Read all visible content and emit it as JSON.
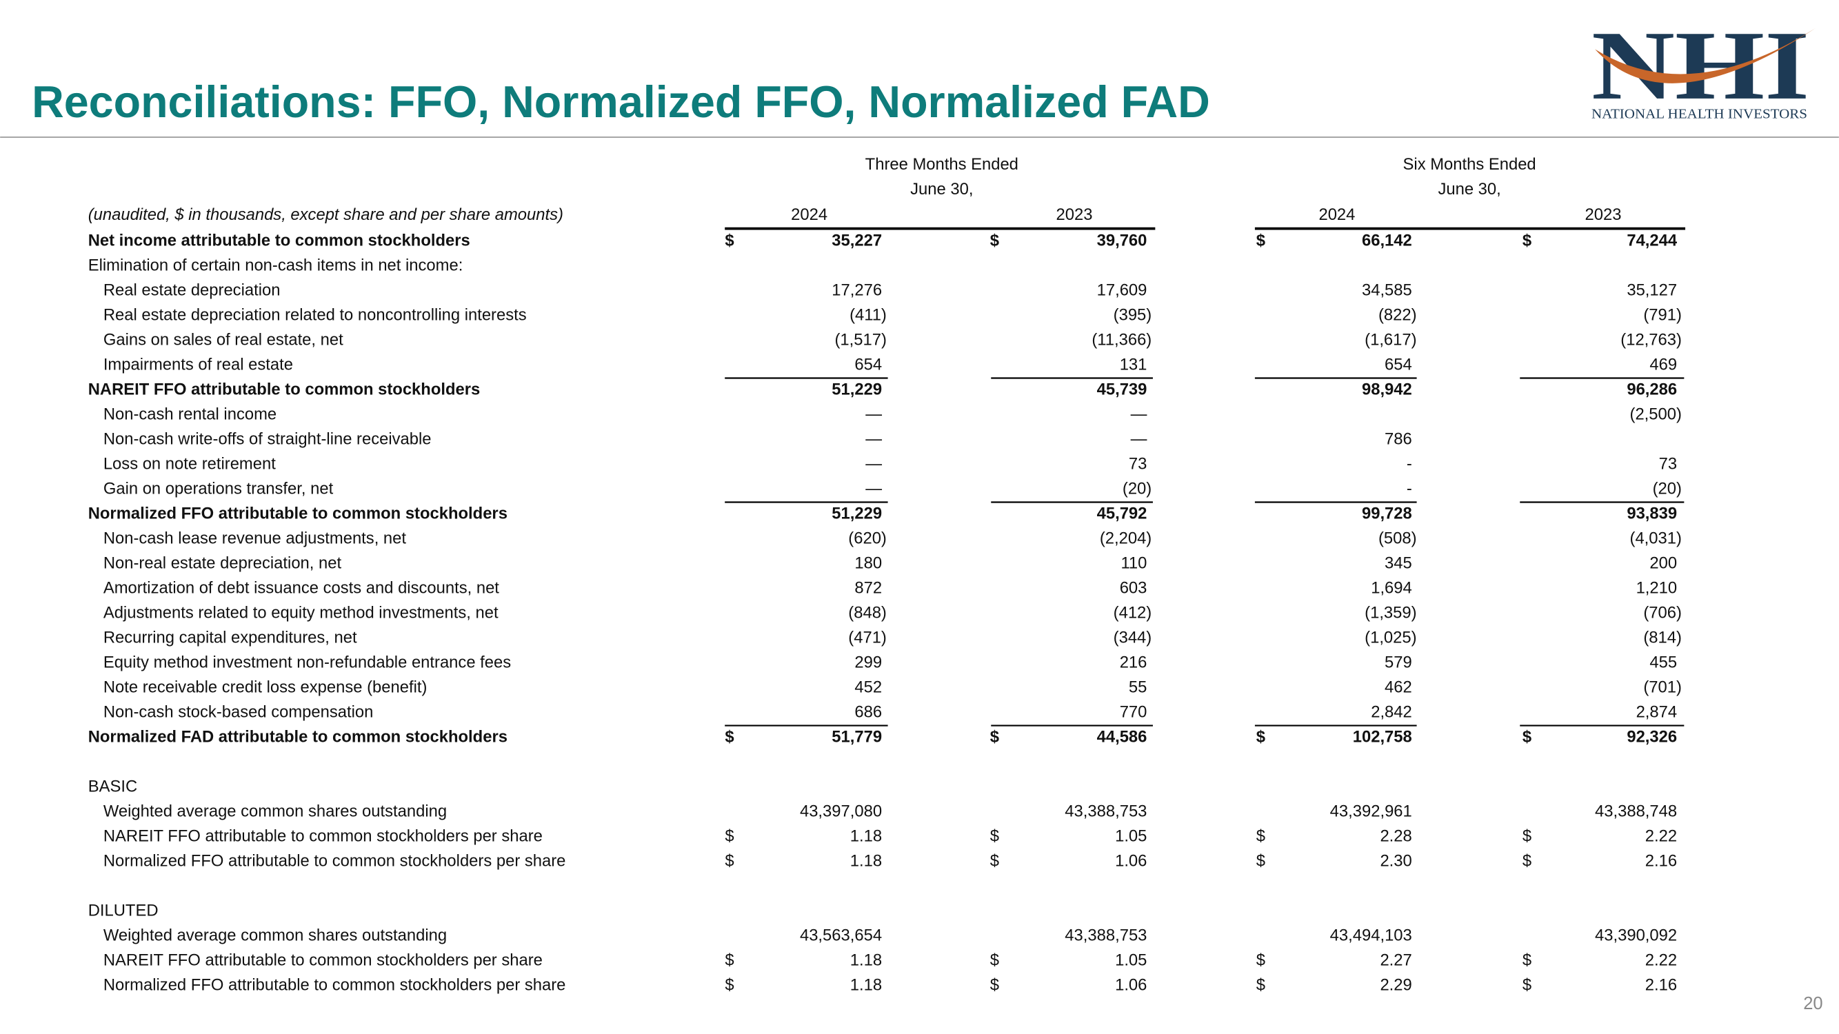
{
  "header": {
    "title": "Reconciliations:  FFO, Normalized FFO, Normalized FAD",
    "logo": {
      "mark": "NHI",
      "name": "NATIONAL HEALTH INVESTORS"
    }
  },
  "table": {
    "groups": [
      {
        "label": "Three Months Ended",
        "sublabel": "June 30,"
      },
      {
        "label": "Six Months Ended",
        "sublabel": "June 30,"
      }
    ],
    "note": "(unaudited, $ in thousands, except share and per share amounts)",
    "years": [
      "2024",
      "2023",
      "2024",
      "2023"
    ],
    "rows": [
      {
        "label": "Net income attributable to common stockholders",
        "bold": true,
        "symbol": "$",
        "values": [
          "35,227",
          "39,760",
          "66,142",
          "74,244"
        ]
      },
      {
        "label": "Elimination of certain non-cash items in net income:"
      },
      {
        "label": "Real estate depreciation",
        "indent": true,
        "values": [
          "17,276",
          "17,609",
          "34,585",
          "35,127"
        ]
      },
      {
        "label": "Real estate depreciation related to noncontrolling interests",
        "indent": true,
        "values": [
          "(411)",
          "(395)",
          "(822)",
          "(791)"
        ]
      },
      {
        "label": "Gains on sales of real estate, net",
        "indent": true,
        "values": [
          "(1,517)",
          "(11,366)",
          "(1,617)",
          "(12,763)"
        ]
      },
      {
        "label": "Impairments of real estate",
        "indent": true,
        "values": [
          "654",
          "131",
          "654",
          "469"
        ]
      },
      {
        "label": "NAREIT FFO attributable to common stockholders",
        "bold": true,
        "rule_above": true,
        "values": [
          "51,229",
          "45,739",
          "98,942",
          "96,286"
        ]
      },
      {
        "label": "Non-cash rental income",
        "indent": true,
        "values": [
          "—",
          "—",
          null,
          "(2,500)"
        ]
      },
      {
        "label": "Non-cash write-offs of straight-line receivable",
        "indent": true,
        "values": [
          "—",
          "—",
          "786",
          null
        ]
      },
      {
        "label": "Loss on note retirement",
        "indent": true,
        "values": [
          "—",
          "73",
          "-",
          "73"
        ]
      },
      {
        "label": "Gain on operations transfer, net",
        "indent": true,
        "values": [
          "—",
          "(20)",
          "-",
          "(20)"
        ]
      },
      {
        "label": "Normalized FFO attributable to common stockholders",
        "bold": true,
        "rule_above": true,
        "values": [
          "51,229",
          "45,792",
          "99,728",
          "93,839"
        ]
      },
      {
        "label": "Non-cash lease revenue adjustments, net",
        "indent": true,
        "values": [
          "(620)",
          "(2,204)",
          "(508)",
          "(4,031)"
        ]
      },
      {
        "label": "Non-real estate depreciation, net",
        "indent": true,
        "values": [
          "180",
          "110",
          "345",
          "200"
        ]
      },
      {
        "label": "Amortization of debt issuance costs and discounts, net",
        "indent": true,
        "values": [
          "872",
          "603",
          "1,694",
          "1,210"
        ]
      },
      {
        "label": "Adjustments related to equity method investments, net",
        "indent": true,
        "values": [
          "(848)",
          "(412)",
          "(1,359)",
          "(706)"
        ]
      },
      {
        "label": "Recurring capital expenditures, net",
        "indent": true,
        "values": [
          "(471)",
          "(344)",
          "(1,025)",
          "(814)"
        ]
      },
      {
        "label": "Equity method investment non-refundable entrance fees",
        "indent": true,
        "values": [
          "299",
          "216",
          "579",
          "455"
        ]
      },
      {
        "label": "Note receivable credit loss expense (benefit)",
        "indent": true,
        "values": [
          "452",
          "55",
          "462",
          "(701)"
        ]
      },
      {
        "label": "Non-cash stock-based compensation",
        "indent": true,
        "values": [
          "686",
          "770",
          "2,842",
          "2,874"
        ]
      },
      {
        "label": "Normalized FAD attributable to common stockholders",
        "bold": true,
        "rule_above": true,
        "symbol": "$",
        "values": [
          "51,779",
          "44,586",
          "102,758",
          "92,326"
        ]
      },
      null,
      {
        "label": "BASIC"
      },
      {
        "label": "Weighted average common shares outstanding",
        "indent": true,
        "values": [
          "43,397,080",
          "43,388,753",
          "43,392,961",
          "43,388,748"
        ]
      },
      {
        "label": "NAREIT FFO attributable to common stockholders per share",
        "indent": true,
        "symbol": "$",
        "values": [
          "1.18",
          "1.05",
          "2.28",
          "2.22"
        ]
      },
      {
        "label": "Normalized FFO attributable to common stockholders per share",
        "indent": true,
        "symbol": "$",
        "values": [
          "1.18",
          "1.06",
          "2.30",
          "2.16"
        ]
      },
      null,
      {
        "label": "DILUTED"
      },
      {
        "label": "Weighted average common shares outstanding",
        "indent": true,
        "values": [
          "43,563,654",
          "43,388,753",
          "43,494,103",
          "43,390,092"
        ]
      },
      {
        "label": "NAREIT FFO attributable to common stockholders per share",
        "indent": true,
        "symbol": "$",
        "values": [
          "1.18",
          "1.05",
          "2.27",
          "2.22"
        ]
      },
      {
        "label": "Normalized FFO attributable to common stockholders per share",
        "indent": true,
        "symbol": "$",
        "values": [
          "1.18",
          "1.06",
          "2.29",
          "2.16"
        ]
      }
    ]
  },
  "page_number": "20"
}
